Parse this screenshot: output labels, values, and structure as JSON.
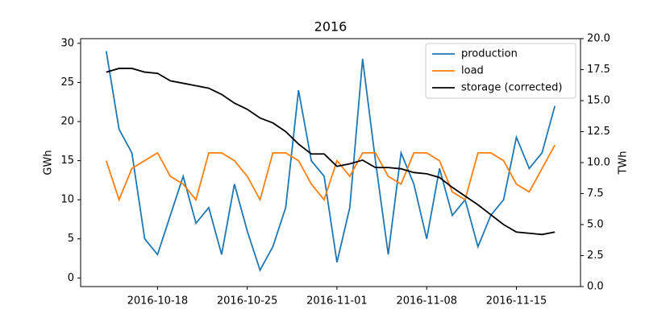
{
  "chart_data": {
    "type": "line",
    "title": "2016",
    "x": [
      "2016-10-14",
      "2016-10-15",
      "2016-10-16",
      "2016-10-17",
      "2016-10-18",
      "2016-10-19",
      "2016-10-20",
      "2016-10-21",
      "2016-10-22",
      "2016-10-23",
      "2016-10-24",
      "2016-10-25",
      "2016-10-26",
      "2016-10-27",
      "2016-10-28",
      "2016-10-29",
      "2016-10-30",
      "2016-10-31",
      "2016-11-01",
      "2016-11-02",
      "2016-11-03",
      "2016-11-04",
      "2016-11-05",
      "2016-11-06",
      "2016-11-07",
      "2016-11-08",
      "2016-11-09",
      "2016-11-10",
      "2016-11-11",
      "2016-11-12",
      "2016-11-13",
      "2016-11-14",
      "2016-11-15",
      "2016-11-16",
      "2016-11-17",
      "2016-11-18"
    ],
    "series": [
      {
        "name": "production",
        "color": "#1f77b4",
        "values": [
          29,
          19,
          16,
          5,
          3,
          8,
          13,
          7,
          9,
          3,
          12,
          6,
          1,
          4,
          9,
          24,
          15,
          13,
          2,
          9,
          28,
          15,
          3,
          16,
          12,
          5,
          14,
          8,
          10,
          4,
          8,
          10,
          18,
          14,
          16,
          22
        ]
      },
      {
        "name": "load",
        "color": "#ff7f0e",
        "values": [
          15,
          10,
          14,
          15,
          16,
          13,
          12,
          10,
          16,
          16,
          15,
          13,
          10,
          16,
          16,
          15,
          12,
          10,
          15,
          13,
          16,
          16,
          13,
          12,
          16,
          16,
          15,
          11,
          10,
          16,
          16,
          15,
          12,
          11,
          14,
          17
        ]
      },
      {
        "name": "storage (corrected)",
        "color": "#000000",
        "axis": "y2",
        "values": [
          17.3,
          17.6,
          17.6,
          17.3,
          17.2,
          16.6,
          16.4,
          16.2,
          16.0,
          15.5,
          14.8,
          14.3,
          13.6,
          13.2,
          12.5,
          11.5,
          10.7,
          10.7,
          9.7,
          9.9,
          10.2,
          9.6,
          9.6,
          9.5,
          9.2,
          9.1,
          8.8,
          8.0,
          7.3,
          6.6,
          5.8,
          5.0,
          4.4,
          4.3,
          4.2,
          4.4
        ]
      }
    ],
    "xlim": [
      "2016-10-12",
      "2016-11-20"
    ],
    "xticks": [
      "2016-10-18",
      "2016-10-25",
      "2016-11-01",
      "2016-11-08",
      "2016-11-15"
    ],
    "ylim": [
      -1.1,
      30.6
    ],
    "yticks": [
      0,
      5,
      10,
      15,
      20,
      25,
      30
    ],
    "ylabel": "GWh",
    "y2lim": [
      0,
      20
    ],
    "y2ticks": [
      {
        "value": 0,
        "label": "0.0"
      },
      2.5,
      {
        "value": 5,
        "label": "5.0"
      },
      7.5,
      {
        "value": 10,
        "label": "10.0"
      },
      12.5,
      {
        "value": 15,
        "label": "15.0"
      },
      17.5,
      {
        "value": 20,
        "label": "20.0"
      }
    ],
    "y2label": "TWh",
    "legend": "upper right"
  }
}
